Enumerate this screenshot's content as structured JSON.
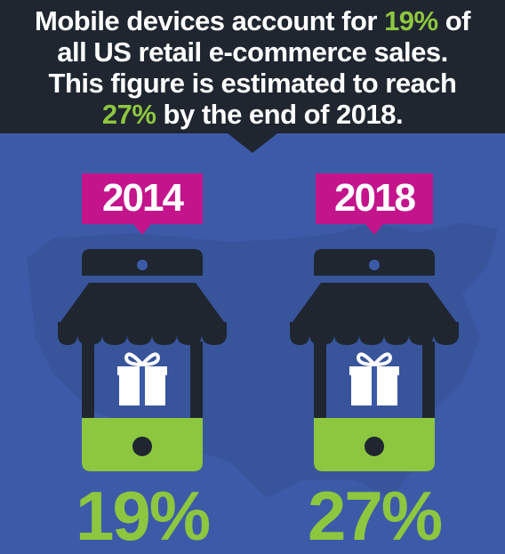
{
  "header": {
    "lines": [
      [
        "Mobile devices account for ",
        "19%",
        " of"
      ],
      [
        "all US retail e-commerce sales."
      ],
      [
        "This figure is estimated to reach"
      ],
      [
        "27%",
        " by the end of 2018."
      ]
    ]
  },
  "panels": [
    {
      "year": "2014",
      "value": "19%"
    },
    {
      "year": "2018",
      "value": "27%"
    }
  ]
}
